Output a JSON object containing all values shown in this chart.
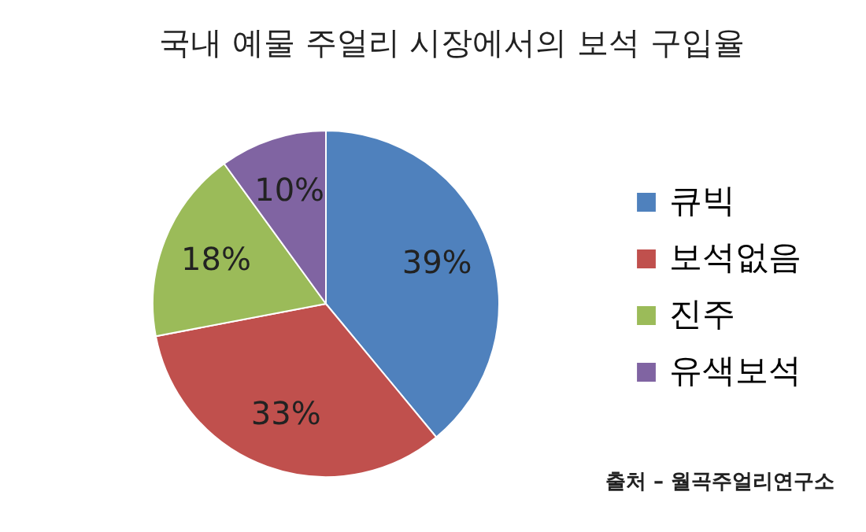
{
  "chart_data": {
    "type": "pie",
    "title": "국내 예물 주얼리 시장에서의 보석 구입율",
    "categories": [
      "큐빅",
      "보석없음",
      "진주",
      "유색보석"
    ],
    "values": [
      39,
      33,
      18,
      10
    ],
    "colors": [
      "#4f81bd",
      "#c0504d",
      "#9bbb59",
      "#8064a2"
    ],
    "value_labels": [
      "39%",
      "33%",
      "18%",
      "10%"
    ],
    "legend": "right",
    "annotations": [
      "출처 – 월곡주얼리연구소"
    ]
  }
}
